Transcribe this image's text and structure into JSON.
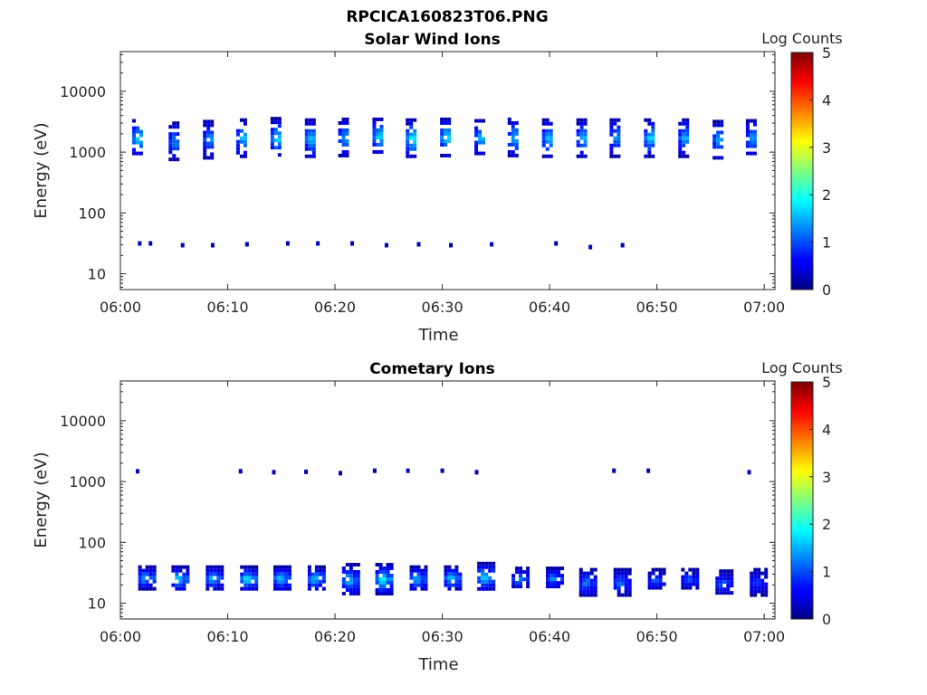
{
  "figure_title": "RPCICA160823T06.PNG",
  "colorbar": {
    "label": "Log Counts",
    "ticks": [
      "0",
      "1",
      "2",
      "3",
      "4",
      "5"
    ],
    "range": [
      0,
      5
    ],
    "colormap": "jet"
  },
  "chart_data": [
    {
      "type": "heatmap",
      "title": "Solar Wind Ions",
      "xlabel": "Time",
      "ylabel": "Energy (eV)",
      "x_ticks": [
        "06:00",
        "06:10",
        "06:20",
        "06:30",
        "06:40",
        "06:50",
        "07:00"
      ],
      "x_range_minutes": [
        0,
        61
      ],
      "y_scale": "log",
      "y_ticks": [
        "10",
        "100",
        "1000",
        "10000"
      ],
      "y_range": [
        5.5,
        45000
      ],
      "blocks": [
        {
          "t": 1.6,
          "e_min": 900,
          "e_max": 3500,
          "peak": 1.7
        },
        {
          "t": 5.0,
          "e_min": 800,
          "e_max": 3200,
          "peak": 1.2
        },
        {
          "t": 8.2,
          "e_min": 850,
          "e_max": 3400,
          "peak": 1.3
        },
        {
          "t": 11.3,
          "e_min": 900,
          "e_max": 3600,
          "peak": 1.5
        },
        {
          "t": 14.5,
          "e_min": 850,
          "e_max": 3800,
          "peak": 1.6
        },
        {
          "t": 17.7,
          "e_min": 850,
          "e_max": 3600,
          "peak": 1.6
        },
        {
          "t": 20.8,
          "e_min": 900,
          "e_max": 3700,
          "peak": 1.4
        },
        {
          "t": 24.0,
          "e_min": 1000,
          "e_max": 3700,
          "peak": 1.7
        },
        {
          "t": 27.1,
          "e_min": 850,
          "e_max": 3600,
          "peak": 1.8
        },
        {
          "t": 30.3,
          "e_min": 900,
          "e_max": 3700,
          "peak": 1.7
        },
        {
          "t": 33.5,
          "e_min": 900,
          "e_max": 3500,
          "peak": 1.5
        },
        {
          "t": 36.6,
          "e_min": 900,
          "e_max": 3700,
          "peak": 1.5
        },
        {
          "t": 39.8,
          "e_min": 900,
          "e_max": 3600,
          "peak": 1.5
        },
        {
          "t": 43.0,
          "e_min": 900,
          "e_max": 3600,
          "peak": 1.5
        },
        {
          "t": 46.1,
          "e_min": 900,
          "e_max": 3600,
          "peak": 1.3
        },
        {
          "t": 49.3,
          "e_min": 900,
          "e_max": 3600,
          "peak": 1.6
        },
        {
          "t": 52.5,
          "e_min": 900,
          "e_max": 3600,
          "peak": 1.4
        },
        {
          "t": 55.7,
          "e_min": 850,
          "e_max": 3400,
          "peak": 1.4
        },
        {
          "t": 58.8,
          "e_min": 900,
          "e_max": 3500,
          "peak": 1.4
        }
      ],
      "low_energy_points": [
        {
          "t": 1.8,
          "e": 31
        },
        {
          "t": 2.8,
          "e": 31
        },
        {
          "t": 5.8,
          "e": 29
        },
        {
          "t": 8.6,
          "e": 29
        },
        {
          "t": 11.8,
          "e": 30
        },
        {
          "t": 15.6,
          "e": 31
        },
        {
          "t": 18.4,
          "e": 31
        },
        {
          "t": 21.6,
          "e": 31
        },
        {
          "t": 24.8,
          "e": 29
        },
        {
          "t": 27.8,
          "e": 30
        },
        {
          "t": 30.8,
          "e": 29
        },
        {
          "t": 34.6,
          "e": 30
        },
        {
          "t": 40.6,
          "e": 31
        },
        {
          "t": 43.8,
          "e": 27
        },
        {
          "t": 46.8,
          "e": 29
        }
      ]
    },
    {
      "type": "heatmap",
      "title": "Cometary Ions",
      "xlabel": "Time",
      "ylabel": "Energy (eV)",
      "x_ticks": [
        "06:00",
        "06:10",
        "06:20",
        "06:30",
        "06:40",
        "06:50",
        "07:00"
      ],
      "x_range_minutes": [
        0,
        61
      ],
      "y_scale": "log",
      "y_ticks": [
        "10",
        "100",
        "1000",
        "10000"
      ],
      "y_range": [
        5.5,
        45000
      ],
      "blocks": [
        {
          "t": 2.5,
          "e_min": 18,
          "e_max": 42,
          "peak": 1.4
        },
        {
          "t": 5.6,
          "e_min": 17,
          "e_max": 42,
          "peak": 1.6
        },
        {
          "t": 8.8,
          "e_min": 17,
          "e_max": 42,
          "peak": 1.5
        },
        {
          "t": 12.0,
          "e_min": 17,
          "e_max": 42,
          "peak": 1.7
        },
        {
          "t": 15.1,
          "e_min": 17,
          "e_max": 42,
          "peak": 1.6
        },
        {
          "t": 18.3,
          "e_min": 17,
          "e_max": 42,
          "peak": 1.5
        },
        {
          "t": 21.5,
          "e_min": 14,
          "e_max": 46,
          "peak": 1.5
        },
        {
          "t": 24.6,
          "e_min": 15,
          "e_max": 46,
          "peak": 1.8
        },
        {
          "t": 27.8,
          "e_min": 17,
          "e_max": 42,
          "peak": 1.5
        },
        {
          "t": 31.0,
          "e_min": 17,
          "e_max": 42,
          "peak": 1.5
        },
        {
          "t": 34.1,
          "e_min": 17,
          "e_max": 48,
          "peak": 1.7
        },
        {
          "t": 37.3,
          "e_min": 18,
          "e_max": 40,
          "peak": 1.2
        },
        {
          "t": 40.5,
          "e_min": 18,
          "e_max": 40,
          "peak": 1.2
        },
        {
          "t": 43.6,
          "e_min": 14,
          "e_max": 38,
          "peak": 1.2
        },
        {
          "t": 46.8,
          "e_min": 14,
          "e_max": 38,
          "peak": 1.1
        },
        {
          "t": 50.0,
          "e_min": 17,
          "e_max": 38,
          "peak": 1.0
        },
        {
          "t": 53.1,
          "e_min": 18,
          "e_max": 38,
          "peak": 1.0
        },
        {
          "t": 56.3,
          "e_min": 14,
          "e_max": 36,
          "peak": 1.0
        },
        {
          "t": 59.5,
          "e_min": 14,
          "e_max": 38,
          "peak": 0.9
        }
      ],
      "high_energy_points": [
        {
          "t": 1.6,
          "e": 1450
        },
        {
          "t": 11.2,
          "e": 1450
        },
        {
          "t": 14.3,
          "e": 1400
        },
        {
          "t": 17.3,
          "e": 1420
        },
        {
          "t": 20.5,
          "e": 1350
        },
        {
          "t": 23.7,
          "e": 1480
        },
        {
          "t": 26.8,
          "e": 1480
        },
        {
          "t": 30.0,
          "e": 1480
        },
        {
          "t": 33.2,
          "e": 1400
        },
        {
          "t": 46.0,
          "e": 1480
        },
        {
          "t": 49.2,
          "e": 1480
        },
        {
          "t": 58.6,
          "e": 1400
        }
      ]
    }
  ]
}
